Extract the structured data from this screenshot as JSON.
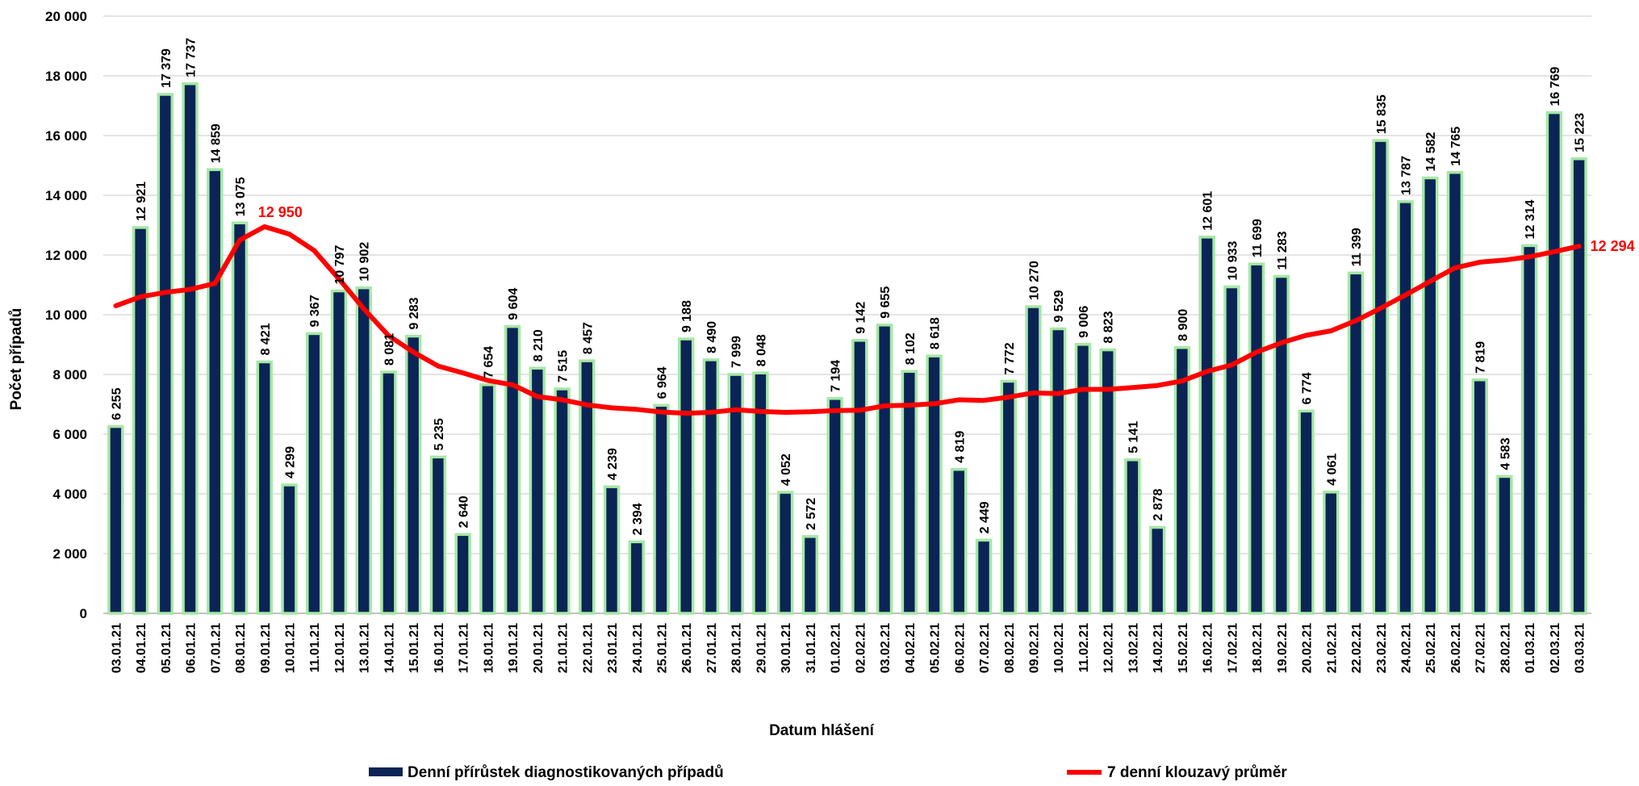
{
  "chart_data": {
    "type": "bar",
    "xlabel": "Datum hlášení",
    "ylabel": "Počet případů",
    "ylim": [
      0,
      20000
    ],
    "yticks": [
      0,
      2000,
      4000,
      6000,
      8000,
      10000,
      12000,
      14000,
      16000,
      18000,
      20000
    ],
    "ytick_labels": [
      "0",
      "2 000",
      "4 000",
      "6 000",
      "8 000",
      "10 000",
      "12 000",
      "14 000",
      "16 000",
      "18 000",
      "20 000"
    ],
    "grid": "horizontal",
    "legend_position": "bottom",
    "categories": [
      "03.01.21",
      "04.01.21",
      "05.01.21",
      "06.01.21",
      "07.01.21",
      "08.01.21",
      "09.01.21",
      "10.01.21",
      "11.01.21",
      "12.01.21",
      "13.01.21",
      "14.01.21",
      "15.01.21",
      "16.01.21",
      "17.01.21",
      "18.01.21",
      "19.01.21",
      "20.01.21",
      "21.01.21",
      "22.01.21",
      "23.01.21",
      "24.01.21",
      "25.01.21",
      "26.01.21",
      "27.01.21",
      "28.01.21",
      "29.01.21",
      "30.01.21",
      "31.01.21",
      "01.02.21",
      "02.02.21",
      "03.02.21",
      "04.02.21",
      "05.02.21",
      "06.02.21",
      "07.02.21",
      "08.02.21",
      "09.02.21",
      "10.02.21",
      "11.02.21",
      "12.02.21",
      "13.02.21",
      "14.02.21",
      "15.02.21",
      "16.02.21",
      "17.02.21",
      "18.02.21",
      "19.02.21",
      "20.02.21",
      "21.02.21",
      "22.02.21",
      "23.02.21",
      "24.02.21",
      "25.02.21",
      "26.02.21",
      "27.02.21",
      "28.02.21",
      "01.03.21",
      "02.03.21",
      "03.03.21"
    ],
    "series": [
      {
        "name": "Denní přírůstek diagnostikovaných případů",
        "type": "bar",
        "color": "#0a2456",
        "edge_color": "#a5e8a5",
        "values": [
          6255,
          12921,
          17379,
          17737,
          14859,
          13075,
          8421,
          4299,
          9367,
          10797,
          10902,
          8081,
          9283,
          5235,
          2640,
          7654,
          9604,
          8210,
          7515,
          8457,
          4239,
          2394,
          6964,
          9188,
          8490,
          7999,
          8048,
          4052,
          2572,
          7194,
          9142,
          9655,
          8102,
          8618,
          4819,
          2449,
          7772,
          10270,
          9529,
          9006,
          8823,
          5141,
          2878,
          8900,
          12601,
          10933,
          11699,
          11283,
          6774,
          4061,
          11399,
          15835,
          13787,
          14582,
          14765,
          7819,
          4583,
          12314,
          16769,
          15223
        ],
        "value_labels": [
          "6 255",
          "12 921",
          "17 379",
          "17 737",
          "14 859",
          "13 075",
          "8 421",
          "4 299",
          "9 367",
          "10 797",
          "10 902",
          "8 081",
          "9 283",
          "5 235",
          "2 640",
          "7 654",
          "9 604",
          "8 210",
          "7 515",
          "8 457",
          "4 239",
          "2 394",
          "6 964",
          "9 188",
          "8 490",
          "7 999",
          "8 048",
          "4 052",
          "2 572",
          "7 194",
          "9 142",
          "9 655",
          "8 102",
          "8 618",
          "4 819",
          "2 449",
          "7 772",
          "10 270",
          "9 529",
          "9 006",
          "8 823",
          "5 141",
          "2 878",
          "8 900",
          "12 601",
          "10 933",
          "11 699",
          "11 283",
          "6 774",
          "4 061",
          "11 399",
          "15 835",
          "13 787",
          "14 582",
          "14 765",
          "7 819",
          "4 583",
          "12 314",
          "16 769",
          "15 223"
        ]
      },
      {
        "name": "7 denní klouzavý průměr",
        "type": "line",
        "color": "#ff0000",
        "values": [
          10300,
          10600,
          10750,
          10850,
          11050,
          12500,
          12950,
          12700,
          12150,
          11200,
          10200,
          9300,
          8750,
          8280,
          8050,
          7800,
          7650,
          7260,
          7150,
          6980,
          6880,
          6830,
          6740,
          6700,
          6730,
          6820,
          6760,
          6730,
          6750,
          6790,
          6800,
          6950,
          6970,
          7020,
          7150,
          7130,
          7240,
          7380,
          7360,
          7500,
          7500,
          7560,
          7630,
          7780,
          8100,
          8320,
          8750,
          9060,
          9310,
          9460,
          9800,
          10220,
          10660,
          11120,
          11570,
          11760,
          11830,
          11940,
          12110,
          12294
        ],
        "annotations": [
          {
            "category": "09.01.21",
            "label": "12 950"
          },
          {
            "category": "03.03.21",
            "label": "12 294"
          }
        ]
      }
    ]
  }
}
